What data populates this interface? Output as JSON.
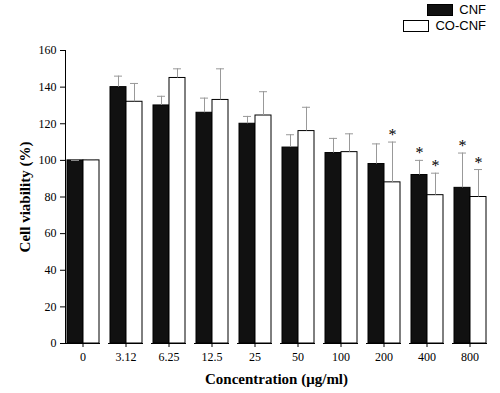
{
  "chart_data": {
    "type": "bar",
    "x_label": "Concentration (μg/ml)",
    "y_label": "Cell viability (%)",
    "categories": [
      "0",
      "3.12",
      "6.25",
      "12.5",
      "25",
      "50",
      "100",
      "200",
      "400",
      "800"
    ],
    "series": [
      {
        "name": "CNF",
        "color": "#111111",
        "values": [
          100,
          140,
          130,
          126,
          120,
          107,
          104,
          98,
          92,
          85
        ],
        "errors": [
          0,
          6,
          5,
          8,
          4,
          7,
          8,
          11,
          8,
          19
        ]
      },
      {
        "name": "CO-CNF",
        "color": "#ffffff",
        "values": [
          100,
          132,
          145,
          133,
          124.5,
          116,
          104.5,
          88,
          81,
          80
        ],
        "errors": [
          0,
          10,
          5,
          17,
          13,
          13,
          10,
          22,
          12,
          15
        ]
      }
    ],
    "annotations": [
      {
        "category": "200",
        "series": "CO-CNF",
        "text": "*"
      },
      {
        "category": "400",
        "series": "CNF",
        "text": "*"
      },
      {
        "category": "400",
        "series": "CO-CNF",
        "text": "*"
      },
      {
        "category": "800",
        "series": "CNF",
        "text": "*"
      },
      {
        "category": "800",
        "series": "CO-CNF",
        "text": "*"
      }
    ],
    "ylim": [
      0,
      160
    ],
    "yticks": [
      0,
      20,
      40,
      60,
      80,
      100,
      120,
      140,
      160
    ],
    "legend": "upper right",
    "grid": false
  }
}
